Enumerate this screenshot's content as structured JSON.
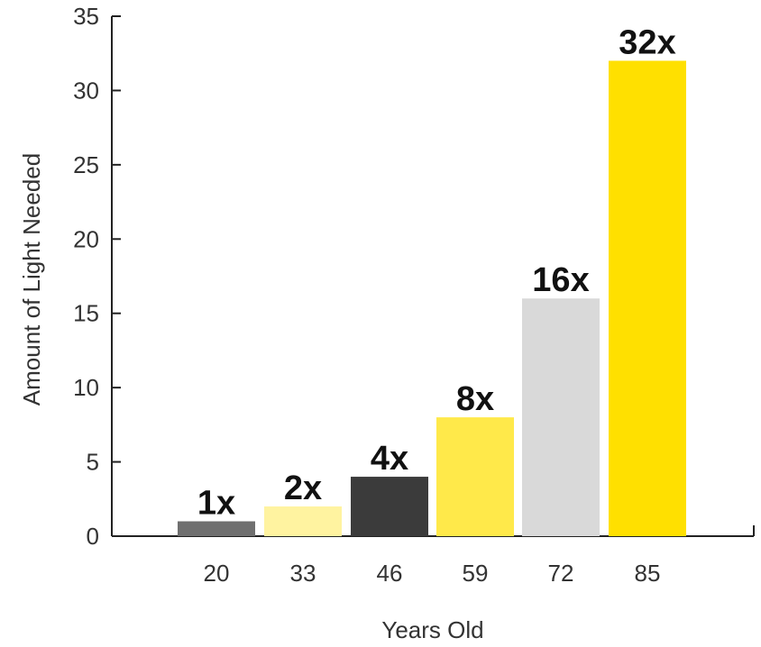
{
  "chart_data": {
    "type": "bar",
    "categories": [
      "20",
      "33",
      "46",
      "59",
      "72",
      "85"
    ],
    "values": [
      1,
      2,
      4,
      8,
      16,
      32
    ],
    "data_labels": [
      "1x",
      "2x",
      "4x",
      "8x",
      "16x",
      "32x"
    ],
    "colors": [
      "#6f6f6f",
      "#fff3a0",
      "#3b3b3b",
      "#ffe94a",
      "#d9d9d9",
      "#ffe000"
    ],
    "title": "",
    "xlabel": "Years Old",
    "ylabel": "Amount of Light Needed",
    "ylim": [
      0,
      35
    ],
    "yticks": [
      0,
      5,
      10,
      15,
      20,
      25,
      30,
      35
    ],
    "grid": false,
    "legend": "none"
  }
}
